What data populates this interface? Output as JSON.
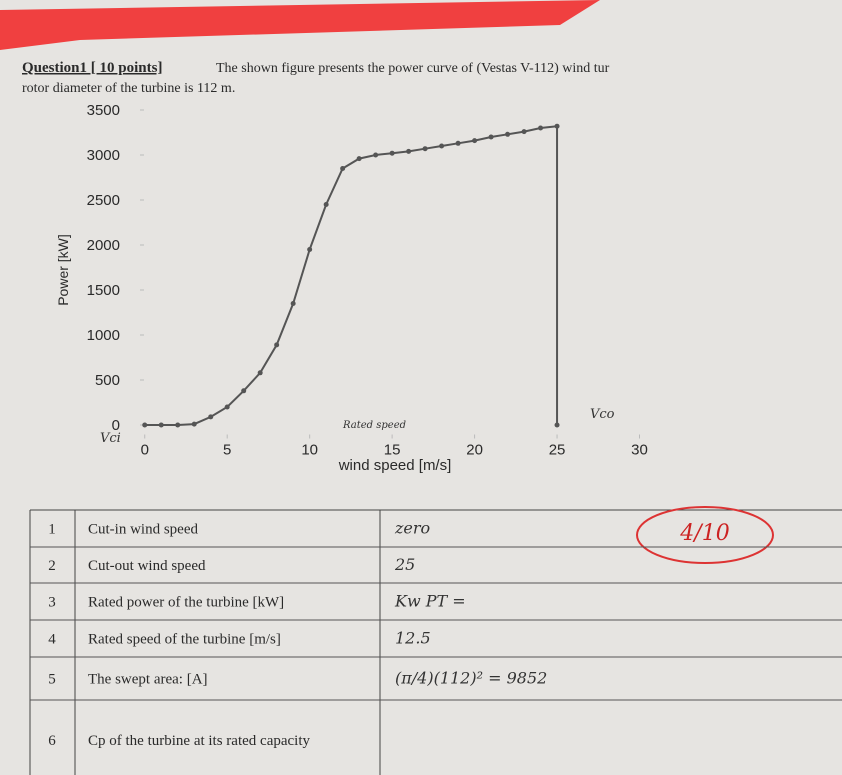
{
  "header": {
    "title": "Question1 [ 10 points]",
    "text": "The shown figure presents the power curve of (Vestas V-112) wind tur",
    "text2": "rotor diameter of the turbine is 112 m."
  },
  "chart": {
    "type": "line",
    "y_label": "Power [kW]",
    "x_label": "wind speed [m/s]",
    "x": [
      0,
      1,
      2,
      3,
      4,
      5,
      6,
      7,
      8,
      9,
      10,
      11,
      12,
      13,
      14,
      15,
      16,
      17,
      18,
      19,
      20,
      21,
      22,
      23,
      24,
      25,
      25
    ],
    "values": [
      0,
      0,
      0,
      10,
      90,
      200,
      380,
      580,
      890,
      1350,
      1950,
      2450,
      2850,
      2960,
      3000,
      3020,
      3040,
      3070,
      3100,
      3130,
      3160,
      3200,
      3230,
      3260,
      3300,
      3320,
      0
    ],
    "color": "#555555",
    "xlim": [
      -1.5,
      31
    ],
    "ylim": [
      -150,
      3600
    ],
    "xticks": [
      0,
      5,
      10,
      15,
      20,
      25,
      30
    ],
    "yticks": [
      0,
      500,
      1000,
      1500,
      2000,
      2500,
      3000,
      3500
    ],
    "annotations": [
      "Vci",
      "Rated speed",
      "Vco"
    ]
  },
  "table": {
    "rows": [
      [
        "1",
        "Cut-in wind speed",
        "zero"
      ],
      [
        "2",
        "Cut-out wind speed",
        "25"
      ],
      [
        "3",
        "Rated power of the turbine [kW]",
        "Kw   PT ="
      ],
      [
        "4",
        "Rated speed of the turbine [m/s]",
        "12.5"
      ],
      [
        "5",
        "The swept area: [A]",
        "(π/4)(112)² = 9852"
      ],
      [
        "6",
        "Cp of the turbine at its rated capacity"
      ]
    ]
  },
  "grade": "4/10"
}
